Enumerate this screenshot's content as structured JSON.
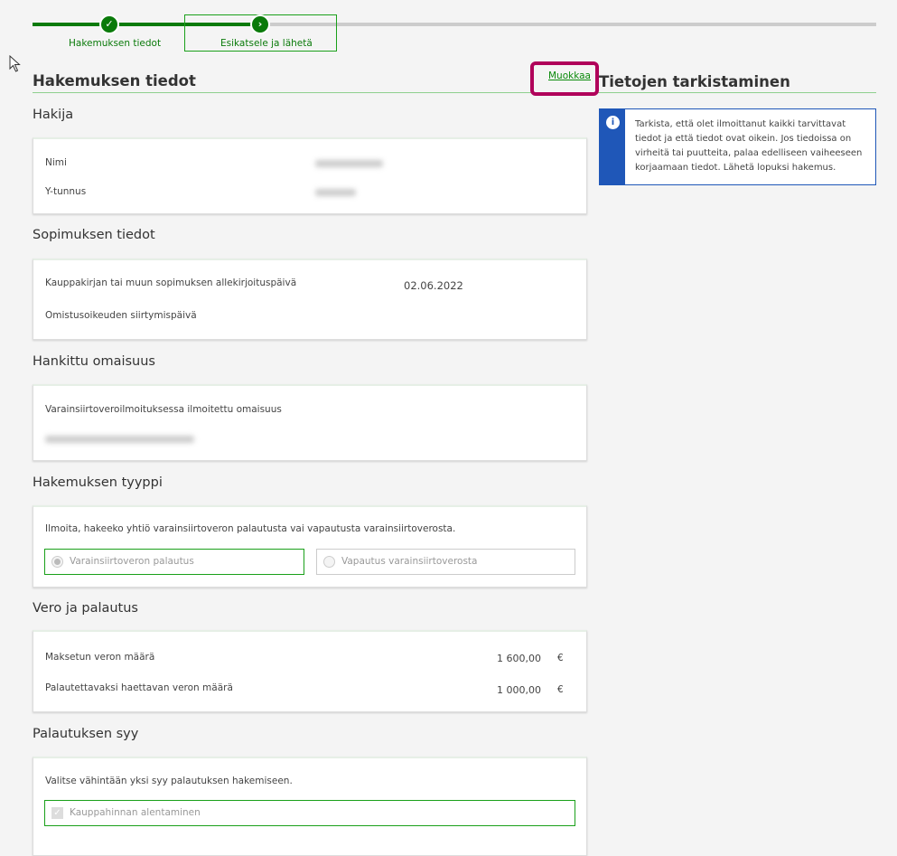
{
  "progress": {
    "steps": [
      {
        "label": "Hakemuksen tiedot",
        "status": "completed",
        "icon": "check-icon"
      },
      {
        "label": "Esikatsele ja lähetä",
        "status": "current",
        "icon": "chevron-right-icon"
      }
    ],
    "color": "#0a7a0a"
  },
  "main": {
    "title": "Hakemuksen tiedot",
    "edit_link": "Muokkaa",
    "sections": {
      "hakija": {
        "title": "Hakija",
        "rows": [
          {
            "label": "Nimi"
          },
          {
            "label": "Y-tunnus"
          }
        ]
      },
      "sopimus": {
        "title": "Sopimuksen tiedot",
        "rows": [
          {
            "label": "Kauppakirjan tai muun sopimuksen allekirjoituspäivä",
            "value": "02.06.2022"
          },
          {
            "label": "Omistusoikeuden siirtymispäivä",
            "value": ""
          }
        ]
      },
      "omaisuus": {
        "title": "Hankittu omaisuus",
        "label": "Varainsiirtoveroilmoituksessa ilmoitettu omaisuus"
      },
      "tyyppi": {
        "title": "Hakemuksen tyyppi",
        "question": "Ilmoita, hakeeko yhtiö varainsiirtoveron palautusta vai vapautusta varainsiirtoverosta.",
        "options": [
          {
            "label": "Varainsiirtoveron palautus",
            "selected": true
          },
          {
            "label": "Vapautus varainsiirtoverosta",
            "selected": false
          }
        ]
      },
      "vero": {
        "title": "Vero ja palautus",
        "rows": [
          {
            "label": "Maksetun veron määrä",
            "value": "1 600,00",
            "unit": "€"
          },
          {
            "label": "Palautettavaksi haettavan veron määrä",
            "value": "1 000,00",
            "unit": "€"
          }
        ]
      },
      "syy": {
        "title": "Palautuksen syy",
        "instruction": "Valitse vähintään yksi syy palautuksen hakemiseen.",
        "options": [
          {
            "label": "Kauppahinnan alentaminen",
            "checked": true
          }
        ]
      }
    }
  },
  "side": {
    "title": "Tietojen tarkistaminen",
    "info": "Tarkista, että olet ilmoittanut kaikki tarvittavat tiedot ja että tiedot ovat oikein. Jos tiedoissa on virheitä tai puutteita, palaa edelliseen vaiheeseen korjaamaan tiedot. Lähetä lopuksi hakemus.",
    "info_color": "#1f57b8"
  },
  "highlight_color": "#b0005a"
}
